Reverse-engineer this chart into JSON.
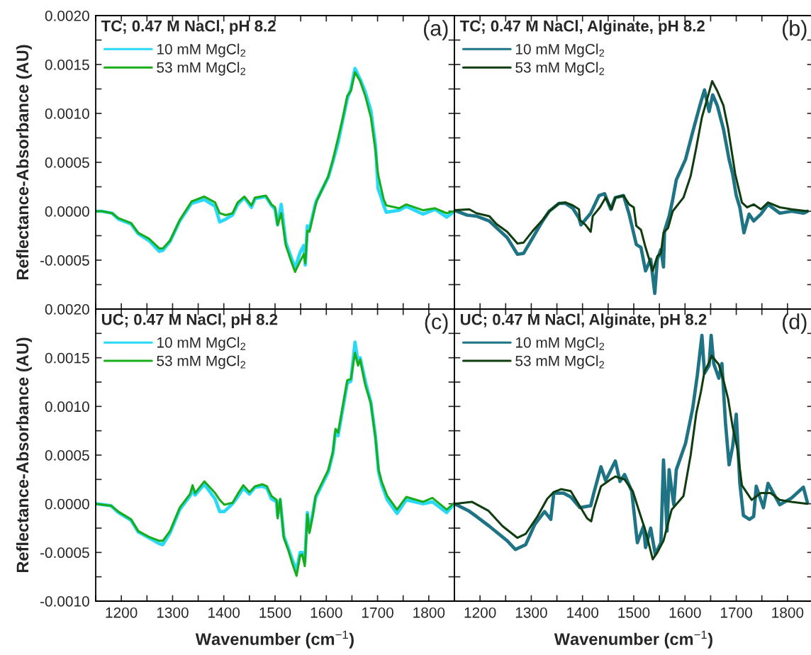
{
  "chart_data": [
    {
      "type": "line",
      "title": "TC; 0.47 M NaCl, pH 8.2",
      "annotations": [
        "(a)"
      ],
      "ylabel": "Reflectance-Absorbance (AU)",
      "legend": "top left",
      "tick_labels": "y",
      "xlim": [
        1150,
        1850
      ],
      "xticks": [
        {
          "value": 1150,
          "label": null
        },
        {
          "value": 1200,
          "label": null
        },
        {
          "value": 1250,
          "label": null
        },
        {
          "value": 1300,
          "label": null
        },
        {
          "value": 1350,
          "label": null
        },
        {
          "value": 1400,
          "label": null
        },
        {
          "value": 1450,
          "label": null
        },
        {
          "value": 1500,
          "label": null
        },
        {
          "value": 1550,
          "label": null
        },
        {
          "value": 1600,
          "label": null
        },
        {
          "value": 1650,
          "label": null
        },
        {
          "value": 1700,
          "label": null
        },
        {
          "value": 1750,
          "label": null
        },
        {
          "value": 1800,
          "label": null
        },
        {
          "value": 1850,
          "label": null
        }
      ],
      "ylim": [
        -0.001,
        0.002
      ],
      "yticks": [
        {
          "value": -0.001,
          "label": null
        },
        {
          "value": -0.00075,
          "label": null
        },
        {
          "value": -0.0005,
          "label": "-0.0005"
        },
        {
          "value": -0.00025,
          "label": null
        },
        {
          "value": 0,
          "label": "0.0000"
        },
        {
          "value": 0.00025,
          "label": null
        },
        {
          "value": 0.0005,
          "label": "0.0005"
        },
        {
          "value": 0.00075,
          "label": null
        },
        {
          "value": 0.001,
          "label": "0.0010"
        },
        {
          "value": 0.00125,
          "label": null
        },
        {
          "value": 0.0015,
          "label": "0.0015"
        },
        {
          "value": 0.00175,
          "label": null
        },
        {
          "value": 0.002,
          "label": "0.0020"
        }
      ],
      "series": [
        {
          "name": "10 mM MgCl$_{2}$",
          "color": "#2ad8f7",
          "x": [
            1150,
            1162,
            1182,
            1194,
            1219,
            1233,
            1254,
            1274,
            1281,
            1295,
            1314,
            1337,
            1362,
            1383,
            1392,
            1404,
            1417,
            1427,
            1440,
            1454,
            1461,
            1482,
            1493,
            1500,
            1505,
            1512,
            1521,
            1530,
            1539,
            1549,
            1556,
            1559,
            1563,
            1567,
            1578,
            1581,
            1604,
            1613,
            1623,
            1632,
            1641,
            1648,
            1656,
            1666,
            1676,
            1687,
            1696,
            1701,
            1706,
            1712,
            1717,
            1742,
            1756,
            1789,
            1812,
            1835,
            1850
          ],
          "values": [
            0,
            0,
            -2e-05,
            -8e-05,
            -0.00013,
            -0.00023,
            -0.0003,
            -0.00041,
            -0.0004,
            -0.00031,
            -0.0001,
            8e-05,
            0.00012,
            5e-05,
            -0.00011,
            -8e-05,
            -4e-05,
            7e-05,
            0.00014,
            4e-05,
            0.00013,
            0.00015,
            6e-05,
            2e-05,
            -0.00014,
            7e-05,
            -0.00032,
            -0.00045,
            -0.00058,
            -0.00042,
            -0.00035,
            -0.00055,
            -0.00015,
            -0.00019,
            6e-05,
            0.00011,
            0.00035,
            0.00051,
            0.0007,
            0.00093,
            0.00115,
            0.00125,
            0.00146,
            0.00135,
            0.00122,
            0.00103,
            0.00067,
            0.00023,
            0.00016,
            6e-05,
            -1e-05,
            1e-05,
            5e-05,
            -3e-05,
            2e-05,
            -6e-05,
            0
          ]
        },
        {
          "name": "53 mM MgCl$_{2}$",
          "color": "#1aad1a",
          "x": [
            1150,
            1162,
            1182,
            1194,
            1219,
            1233,
            1254,
            1274,
            1281,
            1295,
            1314,
            1337,
            1362,
            1383,
            1392,
            1404,
            1417,
            1427,
            1440,
            1454,
            1461,
            1482,
            1493,
            1500,
            1505,
            1512,
            1521,
            1530,
            1539,
            1549,
            1556,
            1559,
            1563,
            1567,
            1578,
            1581,
            1604,
            1613,
            1623,
            1632,
            1641,
            1648,
            1656,
            1666,
            1676,
            1687,
            1696,
            1701,
            1706,
            1712,
            1717,
            1742,
            1756,
            1789,
            1812,
            1835,
            1850
          ],
          "values": [
            0,
            0,
            -2e-05,
            -7e-05,
            -0.00012,
            -0.00022,
            -0.00028,
            -0.00038,
            -0.00038,
            -0.0003,
            -9e-05,
            0.0001,
            0.00015,
            9e-05,
            -2e-05,
            -4e-05,
            -2e-05,
            9e-05,
            0.00015,
            6e-05,
            0.00014,
            0.00016,
            7e-05,
            4e-05,
            -0.00014,
            -2e-05,
            -0.00035,
            -0.00049,
            -0.00062,
            -0.00051,
            -0.00044,
            -0.00053,
            -0.0002,
            -0.00021,
            4e-05,
            0.0001,
            0.00036,
            0.00053,
            0.00075,
            0.00095,
            0.00118,
            0.00123,
            0.00142,
            0.00133,
            0.00118,
            0.00096,
            0.00062,
            0.00038,
            0.00026,
            0.00012,
            6e-05,
            3e-05,
            7e-05,
            1e-05,
            3e-05,
            -2e-05,
            0
          ]
        }
      ]
    },
    {
      "type": "line",
      "title": "TC; 0.47 M NaCl, Alginate, pH 8.2",
      "annotations": [
        "(b)"
      ],
      "legend": "top left",
      "tick_labels": false,
      "xlim": [
        1150,
        1850
      ],
      "xticks": [
        {
          "value": 1150,
          "label": null
        },
        {
          "value": 1200,
          "label": null
        },
        {
          "value": 1250,
          "label": null
        },
        {
          "value": 1300,
          "label": null
        },
        {
          "value": 1350,
          "label": null
        },
        {
          "value": 1400,
          "label": null
        },
        {
          "value": 1450,
          "label": null
        },
        {
          "value": 1500,
          "label": null
        },
        {
          "value": 1550,
          "label": null
        },
        {
          "value": 1600,
          "label": null
        },
        {
          "value": 1650,
          "label": null
        },
        {
          "value": 1700,
          "label": null
        },
        {
          "value": 1750,
          "label": null
        },
        {
          "value": 1800,
          "label": null
        },
        {
          "value": 1850,
          "label": null
        }
      ],
      "ylim": [
        -0.001,
        0.002
      ],
      "yticks": [
        {
          "value": -0.001,
          "label": null
        },
        {
          "value": -0.00075,
          "label": null
        },
        {
          "value": -0.0005,
          "label": null
        },
        {
          "value": -0.00025,
          "label": null
        },
        {
          "value": 0,
          "label": null
        },
        {
          "value": 0.00025,
          "label": null
        },
        {
          "value": 0.0005,
          "label": null
        },
        {
          "value": 0.00075,
          "label": null
        },
        {
          "value": 0.001,
          "label": null
        },
        {
          "value": 0.00125,
          "label": null
        },
        {
          "value": 0.0015,
          "label": null
        },
        {
          "value": 0.00175,
          "label": null
        },
        {
          "value": 0.002,
          "label": null
        }
      ],
      "series": [
        {
          "name": "10 mM MgCl$_{2}$",
          "color": "#1e7384",
          "x": [
            1150,
            1175,
            1193,
            1218,
            1253,
            1273,
            1285,
            1303,
            1322,
            1335,
            1354,
            1367,
            1381,
            1393,
            1397,
            1416,
            1432,
            1443,
            1455,
            1464,
            1480,
            1491,
            1505,
            1514,
            1523,
            1533,
            1541,
            1546,
            1553,
            1558,
            1560,
            1569,
            1576,
            1583,
            1601,
            1615,
            1629,
            1638,
            1647,
            1654,
            1663,
            1675,
            1686,
            1693,
            1700,
            1707,
            1715,
            1725,
            1734,
            1748,
            1762,
            1785,
            1808,
            1831,
            1839
          ],
          "values": [
            1e-05,
            -4e-05,
            -5e-05,
            -0.0001,
            -0.00027,
            -0.00044,
            -0.00043,
            -0.00027,
            -0.0001,
            0,
            8e-05,
            8e-05,
            3e-05,
            -7e-05,
            -0.00014,
            -2e-05,
            0.00016,
            0.00018,
            2e-05,
            0.00014,
            0.00016,
            -3e-05,
            -0.00034,
            -0.00037,
            -0.00061,
            -0.00049,
            -0.00084,
            -0.00049,
            -0.00039,
            -0.00057,
            -0.0002,
            -5e-05,
            0.00012,
            0.00032,
            0.00053,
            0.00081,
            0.00108,
            0.00124,
            0.00102,
            0.00119,
            0.00108,
            0.00084,
            0.00053,
            0.00038,
            0.00016,
            4e-05,
            -0.00022,
            -3e-05,
            -0.0001,
            -3e-05,
            7e-05,
            -2e-05,
            0,
            -2e-05,
            0
          ]
        },
        {
          "name": "53 mM MgCl$_{2}$",
          "color": "#0f3d0f",
          "x": [
            1150,
            1179,
            1193,
            1218,
            1232,
            1253,
            1273,
            1285,
            1303,
            1322,
            1335,
            1354,
            1367,
            1381,
            1393,
            1395,
            1406,
            1416,
            1420,
            1434,
            1445,
            1457,
            1464,
            1480,
            1491,
            1500,
            1505,
            1514,
            1523,
            1537,
            1546,
            1553,
            1558,
            1567,
            1576,
            1597,
            1611,
            1622,
            1633,
            1645,
            1653,
            1663,
            1675,
            1684,
            1698,
            1711,
            1721,
            1734,
            1748,
            1762,
            1785,
            1808,
            1839
          ],
          "values": [
            1e-05,
            2e-05,
            -2e-05,
            -5e-05,
            -0.00013,
            -0.00021,
            -0.00033,
            -0.00032,
            -0.0002,
            -9e-05,
            0,
            8e-05,
            9e-05,
            6e-05,
            2e-05,
            -9e-05,
            -0.00014,
            -0.00021,
            -5e-05,
            4e-05,
            0.00014,
            2e-05,
            0.00014,
            0.00016,
            7e-05,
            4e-05,
            -0.00015,
            -0.00019,
            -0.00037,
            -0.00061,
            -0.00046,
            -0.00043,
            -0.00022,
            -0.00017,
            0,
            0.00014,
            0.00036,
            0.00065,
            0.00096,
            0.00118,
            0.00133,
            0.00123,
            0.00108,
            0.00085,
            0.00038,
            9e-05,
            4e-05,
            7e-05,
            2e-05,
            9e-05,
            4e-05,
            2e-05,
            0
          ]
        }
      ]
    },
    {
      "type": "line",
      "title": "UC; 0.47 M NaCl, pH 8.2",
      "annotations": [
        "(c)"
      ],
      "ylabel": "Reflectance-Absorbance (AU)",
      "xlabel": "Wavenumber (cm$^{−1}$)",
      "legend": "top left",
      "xlim": [
        1150,
        1850
      ],
      "xticks": [
        {
          "value": 1150,
          "label": null
        },
        1200,
        {
          "value": 1250,
          "label": null
        },
        1300,
        {
          "value": 1350,
          "label": null
        },
        1400,
        {
          "value": 1450,
          "label": null
        },
        1500,
        {
          "value": 1550,
          "label": null
        },
        1600,
        {
          "value": 1650,
          "label": null
        },
        1700,
        {
          "value": 1750,
          "label": null
        },
        1800,
        {
          "value": 1850,
          "label": null
        }
      ],
      "ylim": [
        -0.001,
        0.002
      ],
      "yticks": [
        {
          "value": -0.001,
          "label": "-0.0010"
        },
        {
          "value": -0.00075,
          "label": null
        },
        {
          "value": -0.0005,
          "label": "-0.0005"
        },
        {
          "value": -0.00025,
          "label": null
        },
        {
          "value": 0,
          "label": "0.0000"
        },
        {
          "value": 0.00025,
          "label": null
        },
        {
          "value": 0.0005,
          "label": "0.0005"
        },
        {
          "value": 0.00075,
          "label": null
        },
        {
          "value": 0.001,
          "label": "0.0010"
        },
        {
          "value": 0.00125,
          "label": null
        },
        {
          "value": 0.0015,
          "label": "0.0015"
        },
        {
          "value": 0.00175,
          "label": null
        },
        {
          "value": 0.002,
          "label": "0.0020"
        }
      ],
      "series": [
        {
          "name": "10 mM MgCl$_{2}$",
          "color": "#2ad8f7",
          "x": [
            1150,
            1180,
            1194,
            1219,
            1233,
            1254,
            1274,
            1281,
            1295,
            1314,
            1334,
            1339,
            1344,
            1362,
            1383,
            1392,
            1401,
            1417,
            1427,
            1438,
            1450,
            1461,
            1475,
            1484,
            1493,
            1503,
            1505,
            1510,
            1517,
            1526,
            1534,
            1542,
            1549,
            1553,
            1558,
            1563,
            1567,
            1574,
            1579,
            1604,
            1613,
            1618,
            1623,
            1632,
            1641,
            1648,
            1656,
            1662,
            1666,
            1676,
            1687,
            1696,
            1702,
            1708,
            1719,
            1738,
            1756,
            1789,
            1807,
            1835,
            1850
          ],
          "values": [
            0,
            -2e-05,
            -9e-05,
            -0.00017,
            -0.00029,
            -0.00035,
            -0.00041,
            -0.00042,
            -0.0003,
            -6e-05,
            8e-05,
            0.00014,
            9e-05,
            0.0002,
            5e-05,
            -8e-05,
            -8e-05,
            0,
            7e-05,
            0.00016,
            0.0001,
            0.00017,
            0.00018,
            0.00016,
            5e-05,
            2e-05,
            -0.00012,
            4e-05,
            -0.00033,
            -0.00046,
            -0.00058,
            -0.00068,
            -0.0005,
            -0.0005,
            -0.0006,
            -9e-05,
            -0.00028,
            -9e-05,
            6e-05,
            0.00033,
            0.00052,
            0.00074,
            0.0007,
            0.00097,
            0.00124,
            0.00126,
            0.00166,
            0.00145,
            0.0015,
            0.00126,
            0.00104,
            0.00069,
            0.00033,
            0.0002,
            4e-05,
            -0.0001,
            4e-05,
            0,
            2e-05,
            -9e-05,
            0
          ]
        },
        {
          "name": "53 mM MgCl$_{2}$",
          "color": "#1aad1a",
          "x": [
            1150,
            1180,
            1194,
            1219,
            1233,
            1254,
            1274,
            1281,
            1295,
            1314,
            1334,
            1339,
            1344,
            1362,
            1383,
            1392,
            1401,
            1417,
            1427,
            1438,
            1450,
            1461,
            1475,
            1484,
            1493,
            1503,
            1505,
            1510,
            1517,
            1526,
            1534,
            1542,
            1549,
            1553,
            1558,
            1563,
            1567,
            1574,
            1579,
            1604,
            1613,
            1618,
            1623,
            1632,
            1641,
            1648,
            1656,
            1662,
            1666,
            1676,
            1687,
            1696,
            1702,
            1708,
            1719,
            1738,
            1756,
            1789,
            1807,
            1835,
            1850
          ],
          "values": [
            0,
            -2e-05,
            -8e-05,
            -0.00016,
            -0.00028,
            -0.00034,
            -0.00038,
            -0.00038,
            -0.00028,
            -4e-05,
            0.0001,
            0.00019,
            0.00011,
            0.00023,
            0.00011,
            4e-05,
            -1e-05,
            1e-05,
            0.0001,
            0.00019,
            0.00012,
            0.00018,
            0.0002,
            0.00018,
            8e-05,
            4e-05,
            -0.00015,
            5e-05,
            -0.00035,
            -0.00048,
            -0.00062,
            -0.00074,
            -0.00053,
            -0.00052,
            -0.00064,
            -0.00011,
            -0.0003,
            -0.00011,
            8e-05,
            0.00035,
            0.00054,
            0.00077,
            0.00073,
            0.001,
            0.00127,
            0.00128,
            0.00155,
            0.00142,
            0.00148,
            0.00122,
            0.00103,
            0.00067,
            0.00035,
            0.00023,
            8e-05,
            -6e-05,
            7e-05,
            2e-05,
            6e-05,
            -6e-05,
            1e-05
          ]
        }
      ]
    },
    {
      "type": "line",
      "title": "UC; 0.47 M NaCl, Alginate, pH 8.2",
      "annotations": [
        "(d)"
      ],
      "xlabel": "Wavenumber (cm$^{−1}$)",
      "legend": "top left",
      "tick_labels": "x",
      "xlim": [
        1150,
        1850
      ],
      "xticks": [
        {
          "value": 1150,
          "label": null
        },
        1200,
        {
          "value": 1250,
          "label": null
        },
        1300,
        {
          "value": 1350,
          "label": null
        },
        1400,
        {
          "value": 1450,
          "label": null
        },
        1500,
        {
          "value": 1550,
          "label": null
        },
        1600,
        {
          "value": 1650,
          "label": null
        },
        1700,
        {
          "value": 1750,
          "label": null
        },
        1800,
        {
          "value": 1850,
          "label": null
        }
      ],
      "ylim": [
        -0.001,
        0.002
      ],
      "yticks": [
        {
          "value": -0.001,
          "label": null
        },
        {
          "value": -0.00075,
          "label": null
        },
        {
          "value": -0.0005,
          "label": null
        },
        {
          "value": -0.00025,
          "label": null
        },
        {
          "value": 0,
          "label": null
        },
        {
          "value": 0.00025,
          "label": null
        },
        {
          "value": 0.0005,
          "label": null
        },
        {
          "value": 0.00075,
          "label": null
        },
        {
          "value": 0.001,
          "label": null
        },
        {
          "value": 0.00125,
          "label": null
        },
        {
          "value": 0.0015,
          "label": null
        },
        {
          "value": 0.00175,
          "label": null
        },
        {
          "value": 0.002,
          "label": null
        }
      ],
      "series": [
        {
          "name": "10 mM MgCl$_{2}$",
          "color": "#1e7384",
          "x": [
            1150,
            1177,
            1193,
            1218,
            1253,
            1269,
            1289,
            1307,
            1326,
            1338,
            1344,
            1363,
            1377,
            1395,
            1416,
            1422,
            1436,
            1445,
            1464,
            1473,
            1482,
            1496,
            1507,
            1519,
            1523,
            1533,
            1542,
            1553,
            1558,
            1565,
            1569,
            1578,
            1583,
            1601,
            1615,
            1624,
            1633,
            1638,
            1647,
            1651,
            1656,
            1666,
            1672,
            1679,
            1686,
            1693,
            1700,
            1707,
            1714,
            1726,
            1734,
            1739,
            1753,
            1762,
            1785,
            1808,
            1831,
            1839
          ],
          "values": [
            0,
            -7e-05,
            -0.00013,
            -0.00023,
            -0.00038,
            -0.00047,
            -0.00042,
            -0.00021,
            -8e-05,
            -0.00016,
            0.00011,
            0.00011,
            7e-05,
            -4e-05,
            -2e-05,
            0.00011,
            0.00038,
            0.00024,
            0.00044,
            0.00023,
            0.0003,
            0.00013,
            -0.0004,
            -0.00023,
            -0.00045,
            -0.00025,
            -0.00052,
            -0.0004,
            0.00045,
            -0.00028,
            0.00035,
            -1e-05,
            0.00035,
            0.00062,
            0.00098,
            0.00132,
            0.00173,
            0.00134,
            0.00142,
            0.00173,
            0.00144,
            0.00129,
            0.00144,
            0.00083,
            0.0004,
            0.00059,
            0.00092,
            0.00021,
            -0.00012,
            -0.00016,
            -0.00013,
            0.00018,
            -4e-05,
            0.00021,
            -1e-05,
            6e-05,
            0.00017,
            1e-05
          ]
        },
        {
          "name": "53 mM MgCl$_{2}$",
          "color": "#0f3d0f",
          "x": [
            1150,
            1184,
            1216,
            1244,
            1273,
            1289,
            1312,
            1331,
            1344,
            1358,
            1377,
            1393,
            1409,
            1417,
            1422,
            1436,
            1455,
            1464,
            1482,
            1498,
            1510,
            1523,
            1537,
            1546,
            1558,
            1574,
            1597,
            1611,
            1622,
            1631,
            1638,
            1645,
            1652,
            1666,
            1675,
            1684,
            1693,
            1702,
            1711,
            1730,
            1748,
            1767,
            1785,
            1808,
            1839
          ],
          "values": [
            0,
            2e-05,
            -7e-05,
            -0.00023,
            -0.00035,
            -0.00031,
            -0.00013,
            5e-05,
            0.00012,
            0.00015,
            0.00013,
            -1e-05,
            -0.00015,
            -0.00018,
            -6e-05,
            0.00018,
            0.00025,
            0.00028,
            0.00025,
            0.00013,
            -7e-05,
            -0.00028,
            -0.00057,
            -0.0005,
            -0.00038,
            -6e-05,
            8e-05,
            0.0005,
            0.00093,
            0.00115,
            0.00136,
            0.00143,
            0.00152,
            0.00143,
            0.00127,
            0.00108,
            0.00079,
            0.00057,
            0.00019,
            4e-05,
            0.00011,
            0.00011,
            4e-05,
            2e-05,
            0
          ]
        }
      ]
    }
  ]
}
